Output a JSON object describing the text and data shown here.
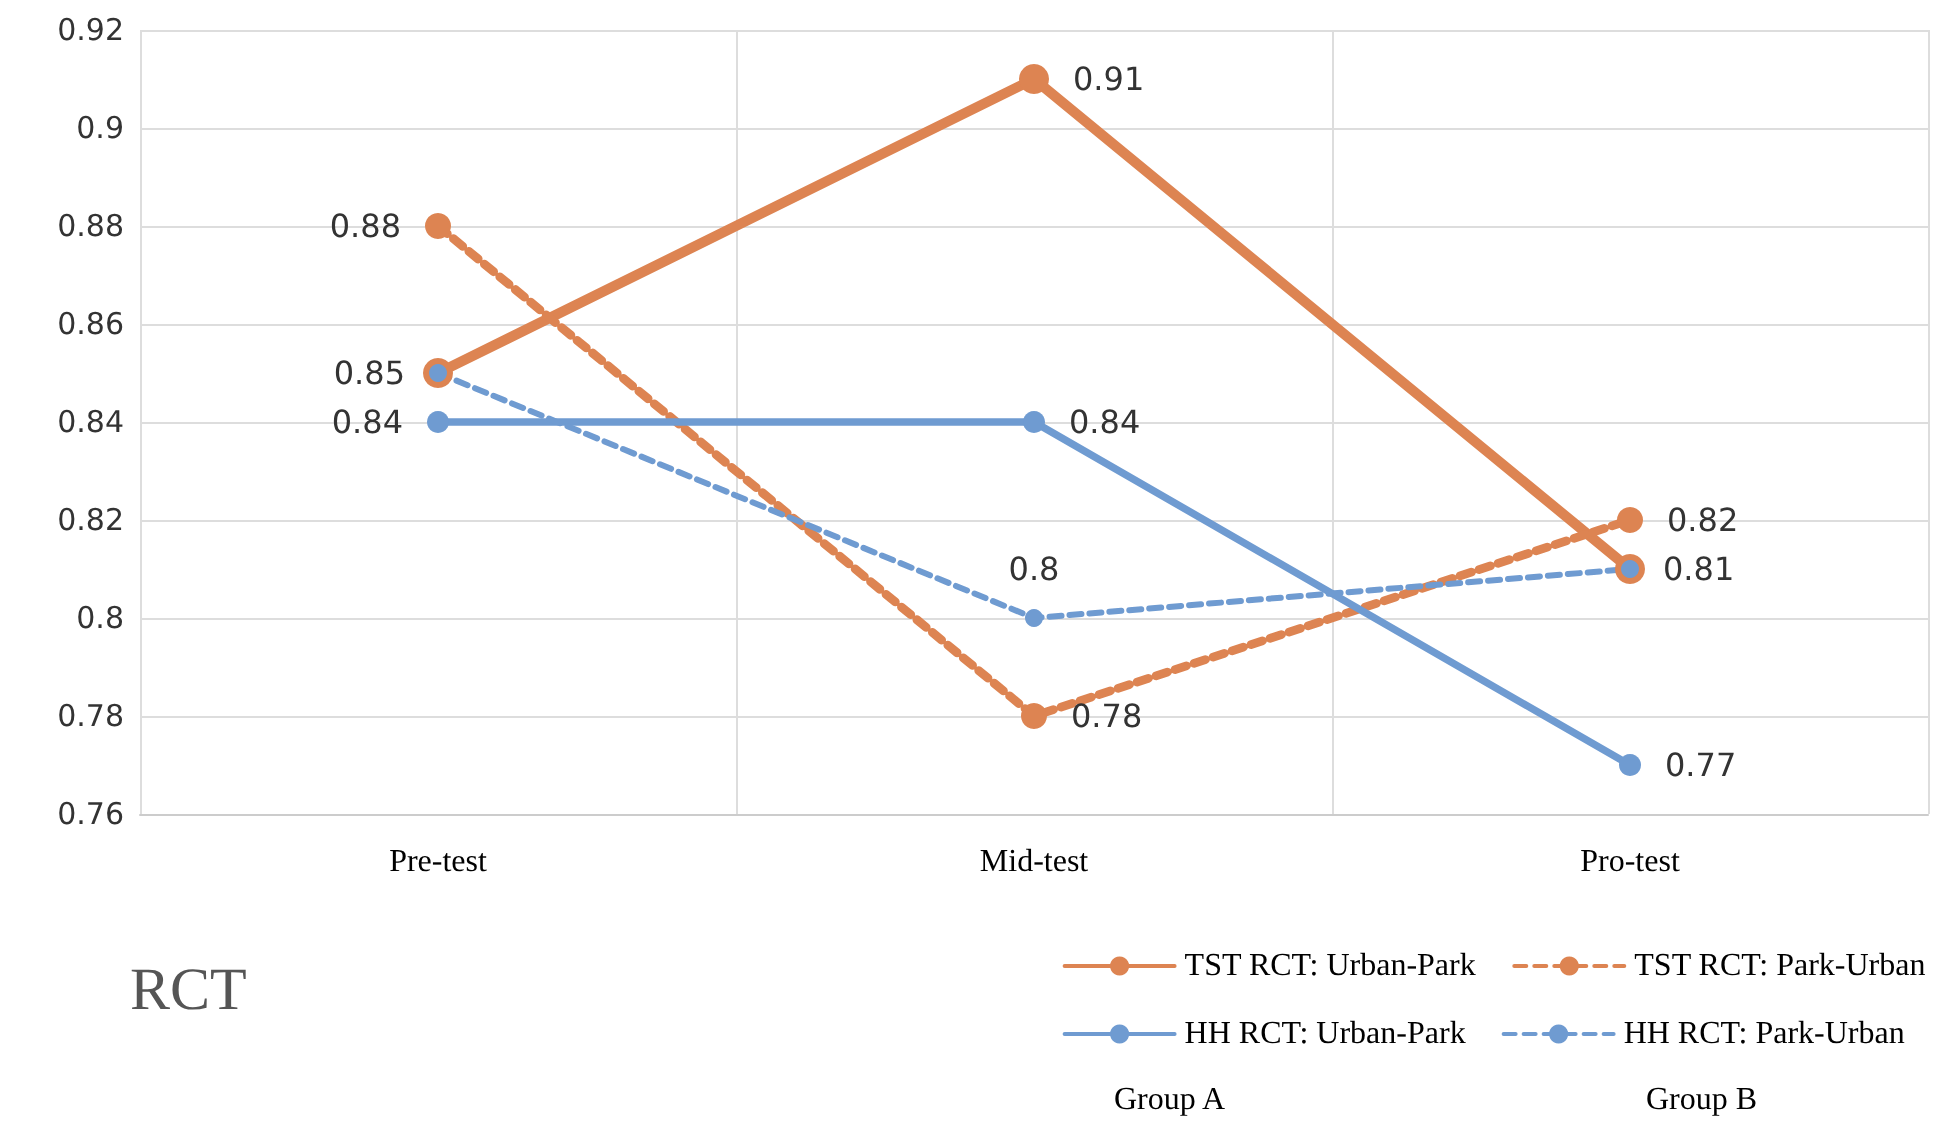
{
  "chart_data": {
    "type": "line",
    "categories": [
      "Pre-test",
      "Mid-test",
      "Pro-test"
    ],
    "series": [
      {
        "name": "TST RCT: Urban-Park",
        "color": "#dd8452",
        "line_style": "solid",
        "values": [
          0.85,
          0.91,
          0.81
        ],
        "value_labels": [
          null,
          "0.91",
          null
        ]
      },
      {
        "name": "TST RCT: Park-Urban",
        "color": "#dd8452",
        "line_style": "dashed",
        "values": [
          0.88,
          0.78,
          0.82
        ],
        "value_labels": [
          "0.88",
          "0.78",
          "0.82"
        ]
      },
      {
        "name": "HH RCT: Urban-Park",
        "color": "#6f9bd1",
        "line_style": "solid",
        "values": [
          0.84,
          0.84,
          0.77
        ],
        "value_labels": [
          "0.84",
          "0.84",
          "0.77"
        ]
      },
      {
        "name": "HH RCT: Park-Urban",
        "color": "#6f9bd1",
        "line_style": "dashed",
        "values": [
          0.85,
          0.8,
          0.81
        ],
        "value_labels": [
          "0.85",
          "0.8",
          "0.81"
        ]
      }
    ],
    "ylim": [
      0.76,
      0.92
    ],
    "yticks": [
      0.76,
      0.78,
      0.8,
      0.82,
      0.84,
      0.86,
      0.88,
      0.9,
      0.92
    ],
    "grid": true,
    "legend": "bottom right",
    "marker": "circle",
    "annotations": [
      "RCT",
      "Group A",
      "Group B"
    ]
  }
}
